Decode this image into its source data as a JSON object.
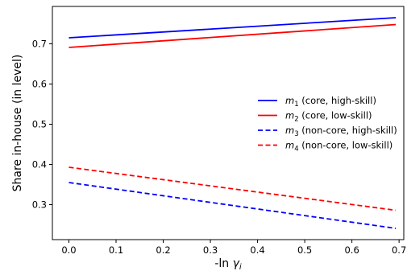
{
  "chart_data": {
    "type": "line",
    "title": "",
    "xlabel_prefix": "-ln ",
    "xlabel_var": "γ",
    "xlabel_sub": "i",
    "ylabel": "Share in-house (in level)",
    "xlim": [
      -0.035,
      0.71
    ],
    "ylim": [
      0.213,
      0.793
    ],
    "x_ticks": [
      0.0,
      0.1,
      0.2,
      0.3,
      0.4,
      0.5,
      0.6,
      0.7
    ],
    "x_tick_labels": [
      "0.0",
      "0.1",
      "0.2",
      "0.3",
      "0.4",
      "0.5",
      "0.6",
      "0.7"
    ],
    "y_ticks": [
      0.3,
      0.4,
      0.5,
      0.6,
      0.7
    ],
    "y_tick_labels": [
      "0.3",
      "0.4",
      "0.5",
      "0.6",
      "0.7"
    ],
    "grid": false,
    "legend_position": "right",
    "series": [
      {
        "var": "m",
        "sub": "1",
        "desc": " (core, high-skill)",
        "color": "#0000ff",
        "dash": "solid",
        "x": [
          0.0,
          0.693
        ],
        "y": [
          0.715,
          0.765
        ]
      },
      {
        "var": "m",
        "sub": "2",
        "desc": " (core, low-skill)",
        "color": "#ff0000",
        "dash": "solid",
        "x": [
          0.0,
          0.693
        ],
        "y": [
          0.691,
          0.748
        ]
      },
      {
        "var": "m",
        "sub": "3",
        "desc": " (non-core, high-skill)",
        "color": "#0000ff",
        "dash": "dashed",
        "x": [
          0.0,
          0.693
        ],
        "y": [
          0.355,
          0.241
        ]
      },
      {
        "var": "m",
        "sub": "4",
        "desc": " (non-core, low-skill)",
        "color": "#ff0000",
        "dash": "dashed",
        "x": [
          0.0,
          0.693
        ],
        "y": [
          0.393,
          0.286
        ]
      }
    ]
  }
}
